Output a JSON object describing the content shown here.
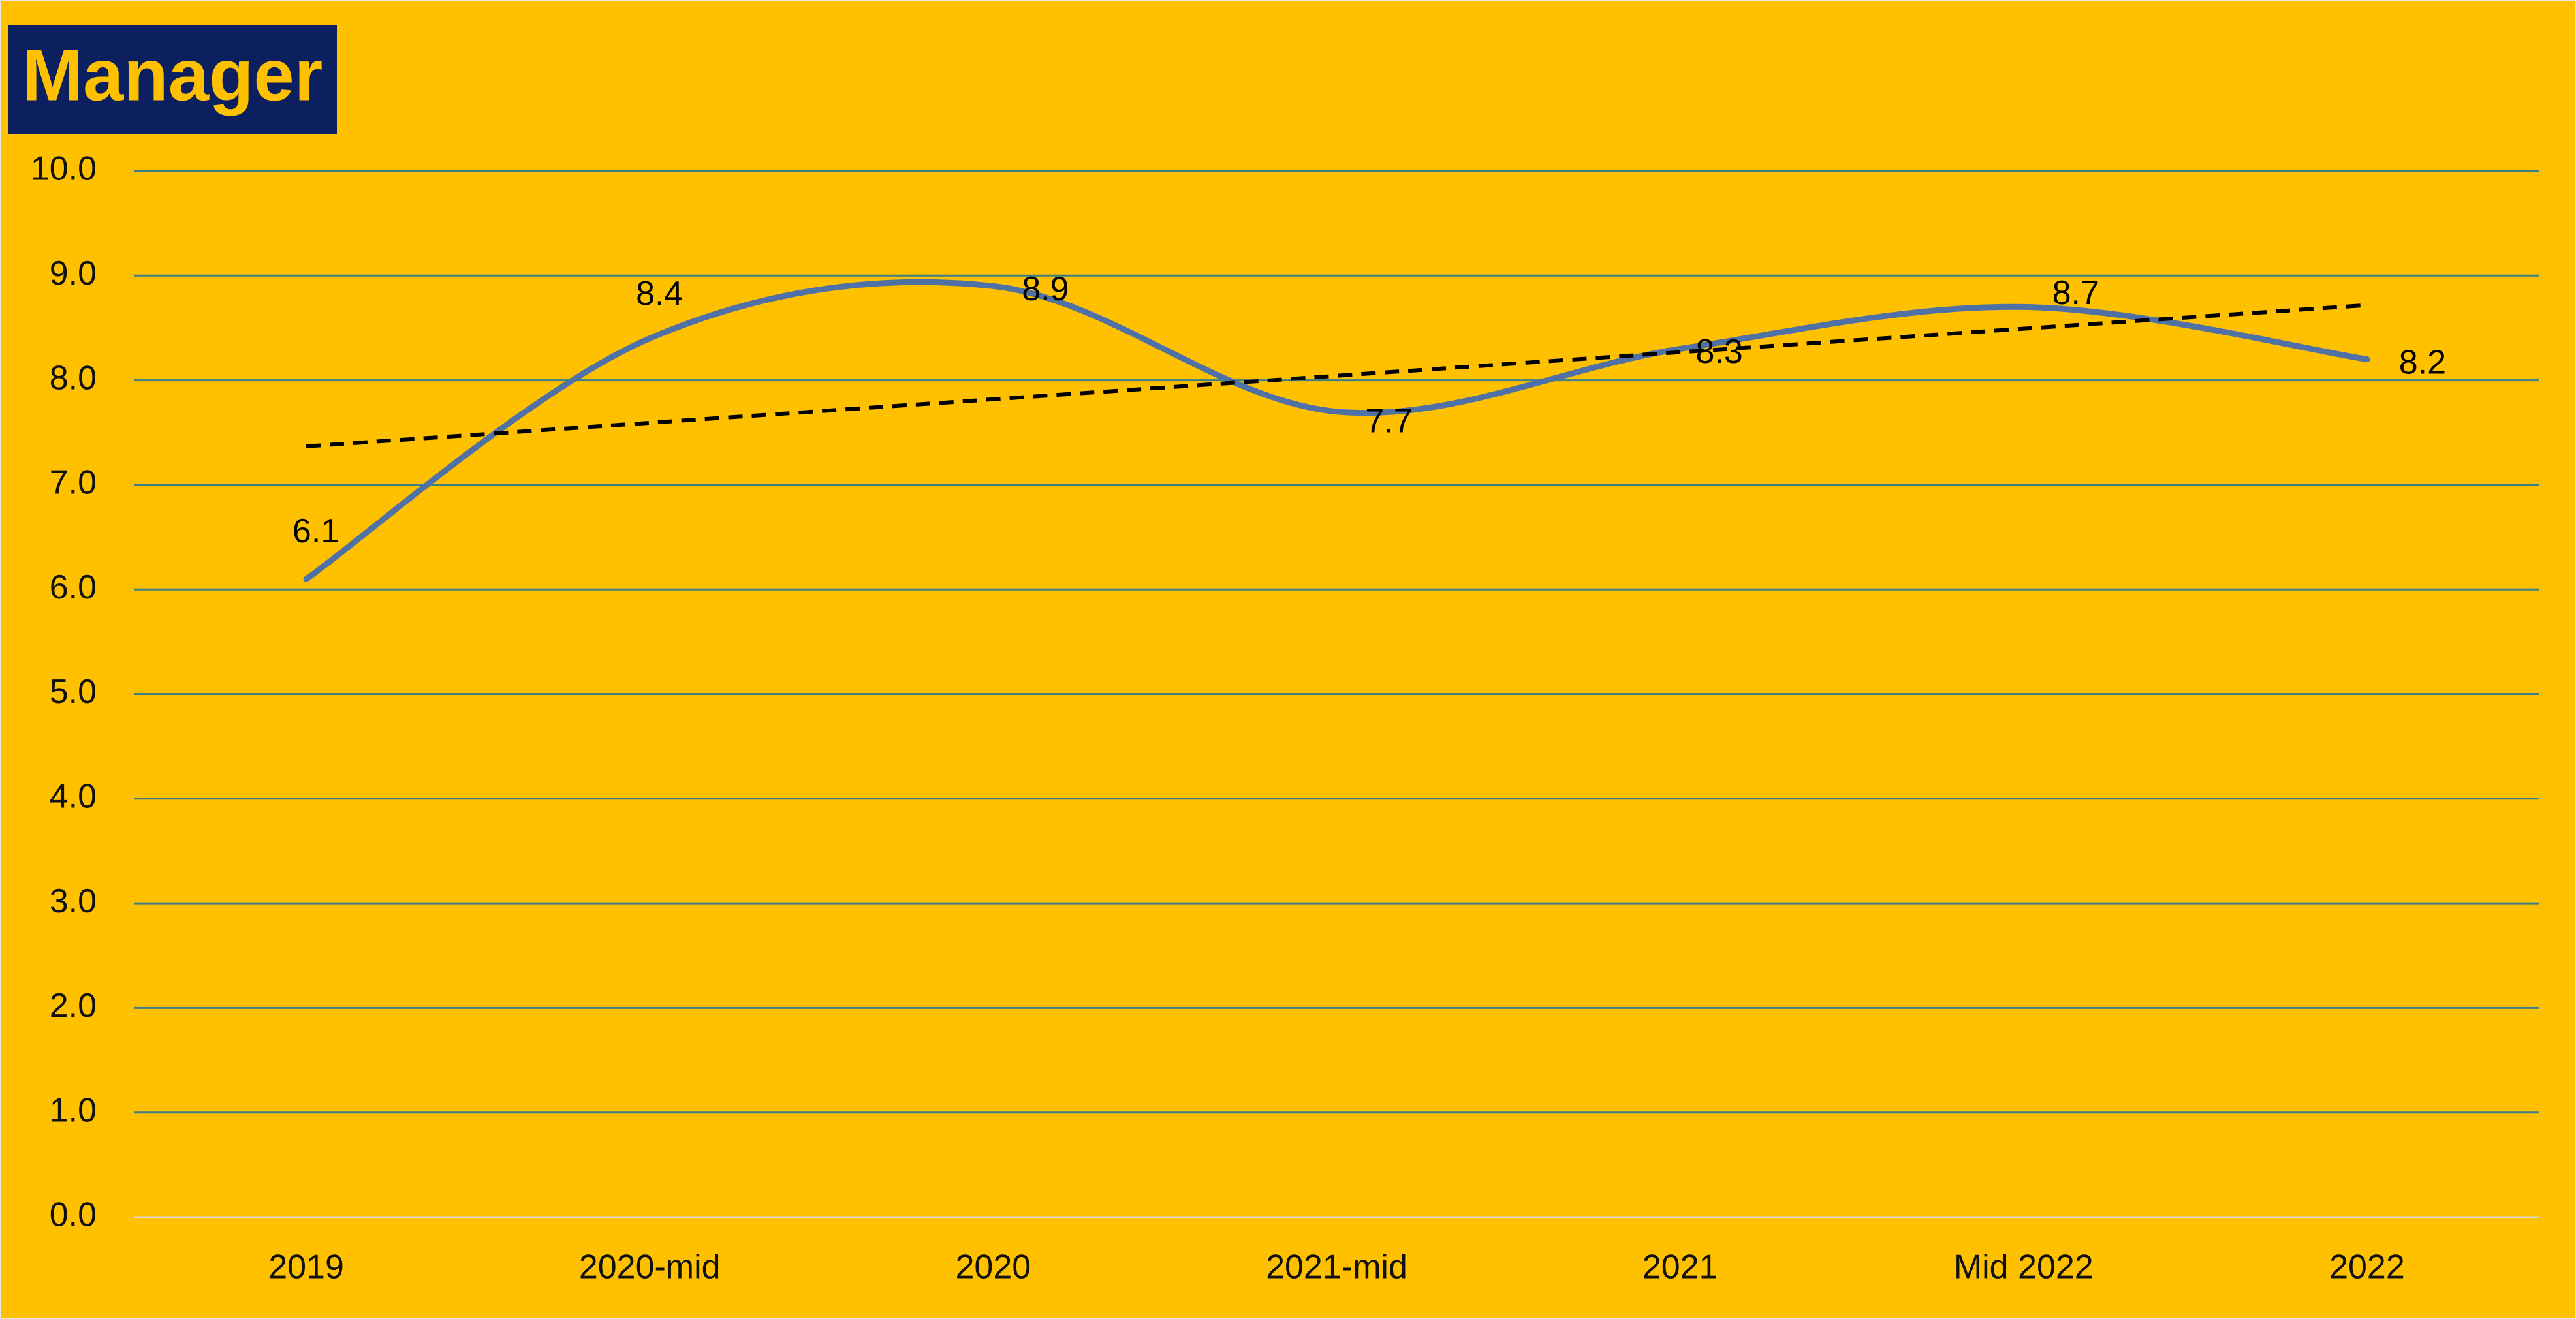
{
  "chart_data": {
    "type": "line",
    "title": "Manager",
    "categories": [
      "2019",
      "2020-mid",
      "2020",
      "2021-mid",
      "2021",
      "Mid 2022",
      "2022"
    ],
    "series": [
      {
        "name": "Manager",
        "color": "#4f71a6",
        "values": [
          6.1,
          8.4,
          8.9,
          7.7,
          8.3,
          8.7,
          8.2
        ]
      }
    ],
    "ylim": [
      0,
      10
    ],
    "yticks": [
      {
        "value": 0,
        "label": "0.0"
      },
      {
        "value": 1,
        "label": "1.0"
      },
      {
        "value": 2,
        "label": "2.0"
      },
      {
        "value": 3,
        "label": "3.0"
      },
      {
        "value": 4,
        "label": "4.0"
      },
      {
        "value": 5,
        "label": "5.0"
      },
      {
        "value": 6,
        "label": "6.0"
      },
      {
        "value": 7,
        "label": "7.0"
      },
      {
        "value": 8,
        "label": "8.0"
      },
      {
        "value": 9,
        "label": "9.0"
      },
      {
        "value": 10,
        "label": "10.0"
      }
    ],
    "grid": true,
    "smooth": true,
    "trendline": "linear"
  }
}
